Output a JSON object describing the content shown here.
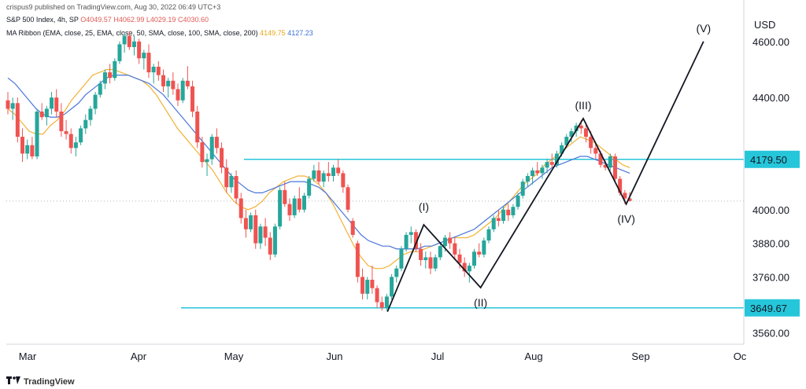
{
  "header": {
    "publisher": "crispus9 published on TradingView.com, Aug 30, 2022 06:49 UTC+3",
    "symbol": "S&P 500 Index, 4h, SP",
    "o": "O4049.57",
    "h": "H4062.99",
    "l": "L4029.19",
    "c": "C4030.60",
    "ribbon_label": "MA Ribbon (EMA, close, 25, EMA, close, 50, SMA, close, 100, SMA, close, 200)",
    "ribbon_v1": "4149.75",
    "ribbon_v2": "4127.23"
  },
  "footer": {
    "brand": "TradingView"
  },
  "chart_data": {
    "type": "candlestick",
    "currency": "USD",
    "ylim": [
      3520,
      4720
    ],
    "y_ticks": [
      "4600.00",
      "4400.00",
      "4000.00",
      "3880.00",
      "3760.00",
      "3560.00"
    ],
    "x_labels": [
      "Mar",
      "Apr",
      "May",
      "Jun",
      "Jul",
      "Aug",
      "Sep",
      "Oc"
    ],
    "hlines": [
      {
        "value": 4179.5,
        "label": "4179.50",
        "color": "#26c6da"
      },
      {
        "value": 3649.67,
        "label": "3649.67",
        "color": "#26c6da"
      }
    ],
    "last_price_line": 4030.6,
    "colors": {
      "up": "#26a69a",
      "down": "#ef5350",
      "ema25": "#f2b134",
      "sma50": "#4a76d9",
      "hline": "#26c6da",
      "wave": "#131722"
    },
    "candles": [
      [
        4.0,
        4350
      ],
      [
        4.1,
        4230
      ],
      [
        4.2,
        4350
      ],
      [
        4.3,
        4370
      ],
      [
        4.35,
        4410
      ],
      [
        4.15,
        4300
      ],
      [
        4.2,
        4340
      ],
      [
        4.3,
        4400
      ],
      [
        4.4,
        4500
      ],
      [
        4.5,
        4580
      ],
      [
        4.63,
        4630
      ],
      [
        4.6,
        4500
      ],
      [
        4.5,
        4480
      ],
      [
        4.45,
        4420
      ],
      [
        4.4,
        4340
      ],
      [
        4.5,
        4480
      ],
      [
        4.3,
        4180
      ],
      [
        4.15,
        4130
      ],
      [
        4.05,
        4000
      ],
      [
        3.95,
        3880
      ],
      [
        3.9,
        3820
      ],
      [
        4.0,
        4100
      ],
      [
        4.1,
        4150
      ],
      [
        4.15,
        4100
      ],
      [
        4.05,
        3970
      ],
      [
        3.95,
        3910
      ],
      [
        3.82,
        3660
      ],
      [
        3.75,
        3700
      ],
      [
        3.8,
        3900
      ],
      [
        3.95,
        3970
      ],
      [
        3.85,
        3800
      ],
      [
        3.8,
        3760
      ],
      [
        3.7,
        3760
      ],
      [
        3.75,
        3890
      ],
      [
        3.85,
        3910
      ],
      [
        3.95,
        3950
      ],
      [
        4.0,
        4000
      ],
      [
        4.05,
        4100
      ],
      [
        4.15,
        4160
      ],
      [
        4.2,
        4260
      ],
      [
        4.25,
        4310
      ],
      [
        4.33,
        4300
      ],
      [
        4.3,
        4200
      ],
      [
        4.2,
        4140
      ],
      [
        4.18,
        4100
      ],
      [
        4.12,
        4060
      ],
      [
        4.06,
        4030
      ]
    ],
    "ohlc": [
      [
        4390,
        4420,
        4340,
        4360
      ],
      [
        4360,
        4400,
        4320,
        4380
      ],
      [
        4380,
        4400,
        4240,
        4260
      ],
      [
        4260,
        4290,
        4170,
        4200
      ],
      [
        4200,
        4250,
        4180,
        4230
      ],
      [
        4230,
        4260,
        4180,
        4190
      ],
      [
        4190,
        4360,
        4180,
        4350
      ],
      [
        4350,
        4380,
        4320,
        4330
      ],
      [
        4330,
        4370,
        4300,
        4360
      ],
      [
        4360,
        4420,
        4340,
        4400
      ],
      [
        4400,
        4430,
        4330,
        4350
      ],
      [
        4350,
        4380,
        4260,
        4280
      ],
      [
        4280,
        4320,
        4250,
        4270
      ],
      [
        4270,
        4290,
        4200,
        4220
      ],
      [
        4220,
        4260,
        4190,
        4240
      ],
      [
        4240,
        4300,
        4230,
        4290
      ],
      [
        4290,
        4340,
        4270,
        4320
      ],
      [
        4320,
        4370,
        4300,
        4360
      ],
      [
        4360,
        4420,
        4340,
        4410
      ],
      [
        4410,
        4460,
        4400,
        4450
      ],
      [
        4450,
        4500,
        4430,
        4490
      ],
      [
        4490,
        4520,
        4450,
        4470
      ],
      [
        4470,
        4540,
        4460,
        4530
      ],
      [
        4530,
        4600,
        4520,
        4590
      ],
      [
        4590,
        4630,
        4560,
        4620
      ],
      [
        4620,
        4637,
        4570,
        4580
      ],
      [
        4580,
        4620,
        4550,
        4600
      ],
      [
        4600,
        4610,
        4520,
        4540
      ],
      [
        4540,
        4570,
        4500,
        4560
      ],
      [
        4560,
        4590,
        4470,
        4490
      ],
      [
        4490,
        4520,
        4450,
        4510
      ],
      [
        4510,
        4530,
        4460,
        4480
      ],
      [
        4480,
        4500,
        4420,
        4440
      ],
      [
        4440,
        4470,
        4400,
        4460
      ],
      [
        4460,
        4490,
        4410,
        4430
      ],
      [
        4430,
        4450,
        4370,
        4390
      ],
      [
        4390,
        4470,
        4380,
        4460
      ],
      [
        4460,
        4512,
        4430,
        4440
      ],
      [
        4440,
        4460,
        4330,
        4350
      ],
      [
        4350,
        4370,
        4220,
        4240
      ],
      [
        4240,
        4260,
        4150,
        4170
      ],
      [
        4170,
        4200,
        4120,
        4180
      ],
      [
        4180,
        4270,
        4160,
        4260
      ],
      [
        4260,
        4290,
        4200,
        4220
      ],
      [
        4220,
        4240,
        4130,
        4150
      ],
      [
        4150,
        4180,
        4060,
        4080
      ],
      [
        4080,
        4130,
        4060,
        4120
      ],
      [
        4120,
        4140,
        4020,
        4040
      ],
      [
        4040,
        4060,
        3950,
        3970
      ],
      [
        3970,
        4000,
        3900,
        3930
      ],
      [
        3930,
        3990,
        3920,
        3980
      ],
      [
        3980,
        4000,
        3860,
        3880
      ],
      [
        3880,
        3950,
        3860,
        3940
      ],
      [
        3940,
        3970,
        3870,
        3900
      ],
      [
        3900,
        3920,
        3820,
        3840
      ],
      [
        3840,
        3950,
        3830,
        3940
      ],
      [
        3940,
        4080,
        3930,
        4070
      ],
      [
        4070,
        4100,
        4010,
        4020
      ],
      [
        4020,
        4040,
        3960,
        3980
      ],
      [
        3980,
        4050,
        3970,
        4040
      ],
      [
        4040,
        4080,
        3990,
        4000
      ],
      [
        4000,
        4060,
        3990,
        4050
      ],
      [
        4050,
        4120,
        4040,
        4110
      ],
      [
        4110,
        4160,
        4100,
        4140
      ],
      [
        4140,
        4170,
        4090,
        4100
      ],
      [
        4100,
        4140,
        4080,
        4130
      ],
      [
        4130,
        4170,
        4100,
        4120
      ],
      [
        4120,
        4160,
        4100,
        4150
      ],
      [
        4150,
        4180,
        4120,
        4130
      ],
      [
        4130,
        4140,
        4060,
        4080
      ],
      [
        4080,
        4090,
        3990,
        4000
      ],
      [
        3960,
        3970,
        3900,
        3910
      ],
      [
        3880,
        3890,
        3740,
        3760
      ],
      [
        3760,
        3790,
        3680,
        3700
      ],
      [
        3700,
        3760,
        3680,
        3750
      ],
      [
        3750,
        3800,
        3700,
        3720
      ],
      [
        3720,
        3730,
        3650,
        3670
      ],
      [
        3670,
        3690,
        3640,
        3650
      ],
      [
        3650,
        3700,
        3640,
        3690
      ],
      [
        3690,
        3770,
        3680,
        3760
      ],
      [
        3760,
        3800,
        3740,
        3790
      ],
      [
        3790,
        3870,
        3780,
        3860
      ],
      [
        3860,
        3920,
        3850,
        3910
      ],
      [
        3910,
        3940,
        3880,
        3920
      ],
      [
        3920,
        3930,
        3850,
        3860
      ],
      [
        3860,
        3880,
        3800,
        3820
      ],
      [
        3820,
        3850,
        3790,
        3830
      ],
      [
        3830,
        3850,
        3770,
        3790
      ],
      [
        3790,
        3840,
        3780,
        3830
      ],
      [
        3830,
        3880,
        3820,
        3870
      ],
      [
        3870,
        3910,
        3850,
        3900
      ],
      [
        3900,
        3920,
        3860,
        3880
      ],
      [
        3880,
        3900,
        3820,
        3840
      ],
      [
        3840,
        3860,
        3790,
        3810
      ],
      [
        3810,
        3830,
        3760,
        3780
      ],
      [
        3780,
        3810,
        3740,
        3800
      ],
      [
        3800,
        3860,
        3790,
        3850
      ],
      [
        3850,
        3880,
        3830,
        3840
      ],
      [
        3840,
        3900,
        3830,
        3890
      ],
      [
        3890,
        3940,
        3880,
        3930
      ],
      [
        3930,
        3980,
        3920,
        3970
      ],
      [
        3970,
        4000,
        3940,
        3960
      ],
      [
        3960,
        4010,
        3950,
        4000
      ],
      [
        4000,
        4020,
        3960,
        3980
      ],
      [
        3980,
        4020,
        3970,
        4010
      ],
      [
        4010,
        4060,
        4000,
        4050
      ],
      [
        4050,
        4110,
        4040,
        4100
      ],
      [
        4100,
        4130,
        4080,
        4120
      ],
      [
        4120,
        4150,
        4090,
        4140
      ],
      [
        4140,
        4170,
        4120,
        4130
      ],
      [
        4130,
        4160,
        4110,
        4150
      ],
      [
        4150,
        4180,
        4130,
        4170
      ],
      [
        4170,
        4200,
        4150,
        4160
      ],
      [
        4160,
        4210,
        4150,
        4200
      ],
      [
        4200,
        4240,
        4190,
        4230
      ],
      [
        4230,
        4270,
        4220,
        4260
      ],
      [
        4260,
        4290,
        4240,
        4280
      ],
      [
        4280,
        4310,
        4260,
        4300
      ],
      [
        4300,
        4320,
        4270,
        4290
      ],
      [
        4290,
        4310,
        4240,
        4260
      ],
      [
        4260,
        4280,
        4200,
        4220
      ],
      [
        4220,
        4240,
        4180,
        4200
      ],
      [
        4200,
        4210,
        4150,
        4160
      ],
      [
        4160,
        4175,
        4140,
        4150
      ],
      [
        4150,
        4200,
        4140,
        4190
      ],
      [
        4190,
        4200,
        4100,
        4110
      ],
      [
        4110,
        4120,
        4050,
        4060
      ],
      [
        4060,
        4070,
        4020,
        4040
      ],
      [
        4040,
        4063,
        4029,
        4031
      ]
    ],
    "ema25": [
      4360,
      4340,
      4310,
      4280,
      4270,
      4270,
      4300,
      4320,
      4350,
      4390,
      4420,
      4450,
      4480,
      4490,
      4500,
      4500,
      4490,
      4480,
      4470,
      4460,
      4440,
      4410,
      4370,
      4330,
      4290,
      4260,
      4230,
      4200,
      4170,
      4140,
      4100,
      4060,
      4030,
      4010,
      4000,
      4010,
      4030,
      4060,
      4080,
      4100,
      4110,
      4120,
      4120,
      4110,
      4090,
      4060,
      4020,
      3970,
      3920,
      3870,
      3830,
      3800,
      3790,
      3790,
      3800,
      3820,
      3840,
      3850,
      3850,
      3860,
      3870,
      3880,
      3890,
      3900,
      3900,
      3900,
      3910,
      3930,
      3950,
      3970,
      4000,
      4030,
      4060,
      4090,
      4110,
      4130,
      4160,
      4180,
      4200,
      4220,
      4240,
      4260,
      4250,
      4240,
      4220,
      4200,
      4180,
      4160,
      4150
    ],
    "sma50": [
      4470,
      4450,
      4420,
      4390,
      4360,
      4340,
      4330,
      4330,
      4340,
      4360,
      4380,
      4410,
      4430,
      4450,
      4470,
      4480,
      4480,
      4480,
      4470,
      4460,
      4450,
      4430,
      4410,
      4380,
      4350,
      4320,
      4290,
      4260,
      4230,
      4200,
      4170,
      4140,
      4110,
      4090,
      4070,
      4060,
      4060,
      4070,
      4080,
      4090,
      4100,
      4100,
      4100,
      4090,
      4080,
      4060,
      4030,
      4000,
      3970,
      3940,
      3910,
      3890,
      3880,
      3870,
      3870,
      3860,
      3860,
      3860,
      3860,
      3870,
      3870,
      3880,
      3890,
      3900,
      3910,
      3920,
      3930,
      3950,
      3970,
      3990,
      4010,
      4030,
      4050,
      4070,
      4090,
      4110,
      4130,
      4150,
      4160,
      4170,
      4180,
      4190,
      4190,
      4180,
      4170,
      4160,
      4150,
      4140,
      4130
    ],
    "elliott_wave": [
      {
        "label": "",
        "x": "Jun 17",
        "y": 3636
      },
      {
        "label": "(I)",
        "x": "Jun 28",
        "y": 3946
      },
      {
        "label": "(II)",
        "x": "Jul 14",
        "y": 3722
      },
      {
        "label": "(III)",
        "x": "Aug 16",
        "y": 4325
      },
      {
        "label": "(IV)",
        "x": "Aug 29",
        "y": 4020
      },
      {
        "label": "(V)",
        "x": "Sep 20",
        "y": 4600
      }
    ]
  }
}
